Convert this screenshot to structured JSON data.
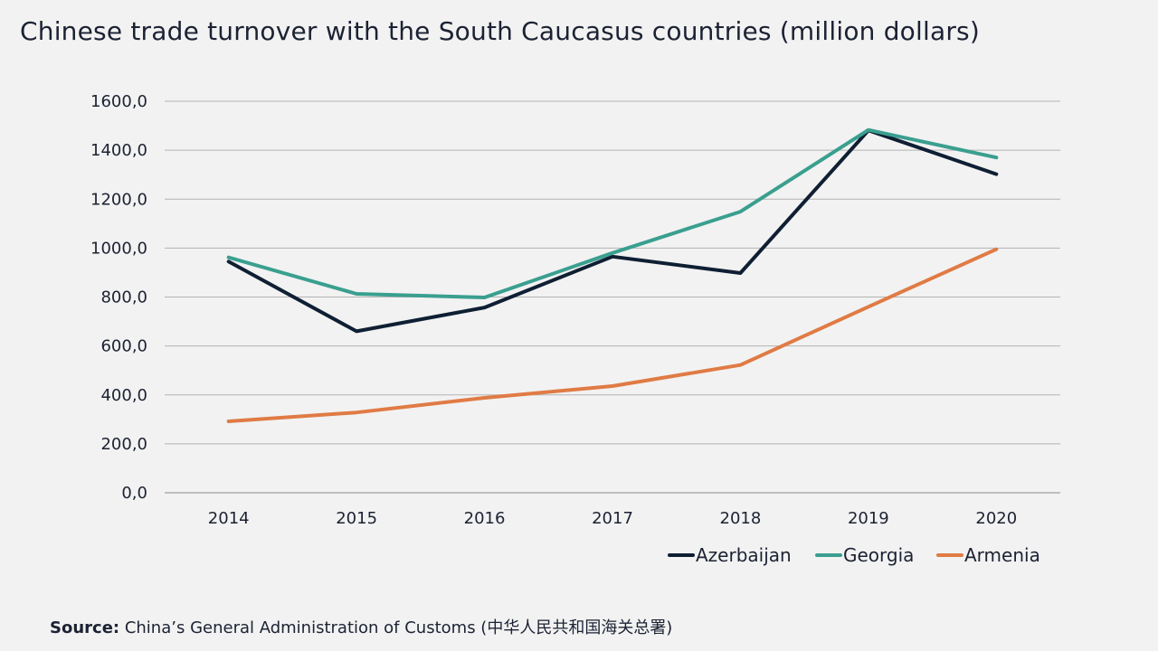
{
  "title": "Chinese trade turnover with the South Caucasus countries (million dollars)",
  "chart_data": {
    "type": "line",
    "title": "Chinese trade turnover with the South Caucasus countries (million dollars)",
    "xlabel": "",
    "ylabel": "",
    "categories": [
      "2014",
      "2015",
      "2016",
      "2017",
      "2018",
      "2019",
      "2020"
    ],
    "ylim": [
      0,
      1600
    ],
    "yticks": [
      0,
      200,
      400,
      600,
      800,
      1000,
      1200,
      1400,
      1600
    ],
    "ytick_labels": [
      "0,0",
      "200,0",
      "400,0",
      "600,0",
      "800,0",
      "1000,0",
      "1200,0",
      "1400,0",
      "1600,0"
    ],
    "grid": true,
    "legend_position": "bottom-right",
    "series": [
      {
        "name": "Azerbaijan",
        "color": "#0f1f33",
        "values": [
          945,
          660,
          757,
          965,
          898,
          1481,
          1302
        ]
      },
      {
        "name": "Georgia",
        "color": "#3a9f8f",
        "values": [
          962,
          813,
          798,
          980,
          1149,
          1483,
          1370
        ]
      },
      {
        "name": "Armenia",
        "color": "#e07b45",
        "values": [
          292,
          328,
          388,
          436,
          522,
          760,
          995
        ]
      }
    ]
  },
  "source": {
    "label": "Source:",
    "text": " China’s General Administration of Customs (中华人民共和国海关总署)"
  }
}
